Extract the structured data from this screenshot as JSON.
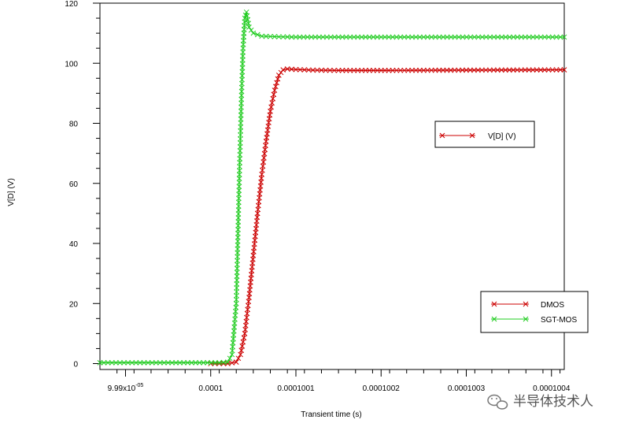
{
  "chart_data": {
    "type": "line",
    "xlabel": "Transient time (s)",
    "ylabel": "V[D] (V)",
    "x_tick_labels": [
      "9.99x10",
      "0.0001",
      "0.0001001",
      "0.0001002",
      "0.0001003",
      "0.0001004"
    ],
    "x_tick_exponent": "-05",
    "x_tick_values": [
      9.99e-05,
      0.0001,
      0.0001001,
      0.0001002,
      0.0001003,
      0.0001004
    ],
    "xlim": [
      9.987e-05,
      0.000100415
    ],
    "y_ticks": [
      0,
      20,
      40,
      60,
      80,
      100,
      120
    ],
    "ylim": [
      -0.5,
      120
    ],
    "grid": false,
    "legends": [
      {
        "entries": [
          "V[D] (V)"
        ],
        "colors": [
          "#cc0000"
        ]
      },
      {
        "entries": [
          "DMOS",
          "SGT-MOS"
        ],
        "colors": [
          "#cc0000",
          "#22cc22"
        ]
      }
    ],
    "series": [
      {
        "name": "DMOS",
        "color": "#cc0000",
        "points": [
          [
            0.0001,
            0
          ],
          [
            0.00010002,
            0
          ],
          [
            0.00010003,
            0.5
          ],
          [
            0.000100035,
            3
          ],
          [
            0.00010004,
            10
          ],
          [
            0.000100045,
            22
          ],
          [
            0.00010005,
            36
          ],
          [
            0.000100055,
            50
          ],
          [
            0.00010006,
            63
          ],
          [
            0.000100065,
            74
          ],
          [
            0.00010007,
            84
          ],
          [
            0.000100075,
            91
          ],
          [
            0.00010008,
            96
          ],
          [
            0.000100085,
            97.8
          ],
          [
            0.00010009,
            98.1
          ],
          [
            0.0001001,
            97.9
          ],
          [
            0.00010012,
            97.7
          ],
          [
            0.00010015,
            97.6
          ],
          [
            0.0001002,
            97.6
          ],
          [
            0.0001003,
            97.7
          ],
          [
            0.000100415,
            97.8
          ]
        ]
      },
      {
        "name": "SGT-MOS",
        "color": "#22cc22",
        "points": [
          [
            9.987e-05,
            0.3
          ],
          [
            9.995e-05,
            0.3
          ],
          [
            0.00010001,
            0.3
          ],
          [
            0.00010002,
            0.5
          ],
          [
            0.000100025,
            3
          ],
          [
            0.00010003,
            20
          ],
          [
            0.000100033,
            55
          ],
          [
            0.000100036,
            88
          ],
          [
            0.000100038,
            105
          ],
          [
            0.00010004,
            115
          ],
          [
            0.000100042,
            117
          ],
          [
            0.000100045,
            112
          ],
          [
            0.00010005,
            110
          ],
          [
            0.00010006,
            109
          ],
          [
            0.00010008,
            108.8
          ],
          [
            0.0001001,
            108.7
          ],
          [
            0.00010015,
            108.7
          ],
          [
            0.00010025,
            108.7
          ],
          [
            0.000100415,
            108.7
          ]
        ]
      }
    ]
  },
  "watermark": {
    "text": "半导体技术人",
    "icon": "wechat-icon"
  }
}
